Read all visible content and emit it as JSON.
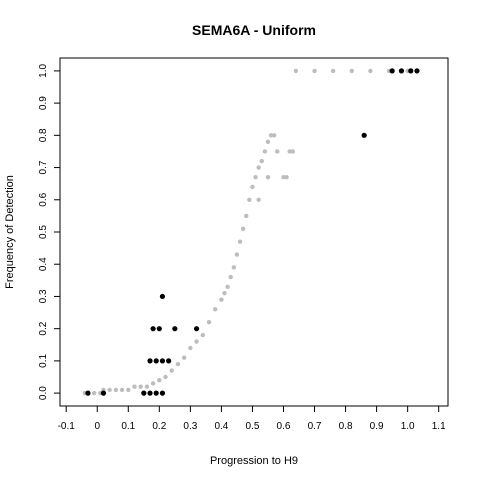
{
  "chart_data": {
    "type": "scatter",
    "title": "SEMA6A - Uniform",
    "xlabel": "Progression to H9",
    "ylabel": "Frequency of Detection",
    "xlim": [
      -0.12,
      1.13
    ],
    "ylim": [
      -0.04,
      1.04
    ],
    "grid": false,
    "x_ticks": [
      "-0.1",
      "0",
      "0.1",
      "0.2",
      "0.3",
      "0.4",
      "0.5",
      "0.6",
      "0.7",
      "0.8",
      "0.9",
      "1.0",
      "1.1"
    ],
    "x_tick_values": [
      -0.1,
      0,
      0.1,
      0.2,
      0.3,
      0.4,
      0.5,
      0.6,
      0.7,
      0.8,
      0.9,
      1.0,
      1.1
    ],
    "y_ticks": [
      "0.0",
      "0.1",
      "0.2",
      "0.3",
      "0.4",
      "0.5",
      "0.6",
      "0.7",
      "0.8",
      "0.9",
      "1.0"
    ],
    "y_tick_values": [
      0.0,
      0.1,
      0.2,
      0.3,
      0.4,
      0.5,
      0.6,
      0.7,
      0.8,
      0.9,
      1.0
    ],
    "series": [
      {
        "color": "#bdbdbd",
        "marker": "circle",
        "points": [
          [
            -0.04,
            0.0
          ],
          [
            -0.01,
            0.0
          ],
          [
            0.01,
            0.0
          ],
          [
            0.02,
            0.01
          ],
          [
            0.04,
            0.01
          ],
          [
            0.06,
            0.01
          ],
          [
            0.08,
            0.01
          ],
          [
            0.1,
            0.01
          ],
          [
            0.12,
            0.02
          ],
          [
            0.14,
            0.02
          ],
          [
            0.16,
            0.02
          ],
          [
            0.18,
            0.03
          ],
          [
            0.2,
            0.04
          ],
          [
            0.22,
            0.05
          ],
          [
            0.24,
            0.07
          ],
          [
            0.26,
            0.09
          ],
          [
            0.28,
            0.11
          ],
          [
            0.3,
            0.14
          ],
          [
            0.32,
            0.16
          ],
          [
            0.34,
            0.18
          ],
          [
            0.36,
            0.22
          ],
          [
            0.38,
            0.26
          ],
          [
            0.4,
            0.29
          ],
          [
            0.41,
            0.31
          ],
          [
            0.42,
            0.33
          ],
          [
            0.43,
            0.36
          ],
          [
            0.44,
            0.39
          ],
          [
            0.45,
            0.43
          ],
          [
            0.46,
            0.47
          ],
          [
            0.47,
            0.51
          ],
          [
            0.48,
            0.55
          ],
          [
            0.49,
            0.6
          ],
          [
            0.5,
            0.64
          ],
          [
            0.51,
            0.67
          ],
          [
            0.52,
            0.7
          ],
          [
            0.53,
            0.72
          ],
          [
            0.54,
            0.75
          ],
          [
            0.55,
            0.78
          ],
          [
            0.56,
            0.8
          ],
          [
            0.57,
            0.8
          ],
          [
            0.58,
            0.75
          ],
          [
            0.6,
            0.67
          ],
          [
            0.62,
            0.75
          ],
          [
            0.52,
            0.6
          ],
          [
            0.55,
            0.67
          ],
          [
            0.61,
            0.67
          ],
          [
            0.63,
            0.75
          ],
          [
            0.64,
            1.0
          ],
          [
            0.7,
            1.0
          ],
          [
            0.76,
            1.0
          ],
          [
            0.82,
            1.0
          ],
          [
            0.88,
            1.0
          ],
          [
            0.94,
            1.0
          ],
          [
            1.0,
            1.0
          ]
        ]
      },
      {
        "color": "#000000",
        "marker": "circle",
        "points": [
          [
            -0.03,
            0.0
          ],
          [
            0.02,
            0.0
          ],
          [
            0.15,
            0.0
          ],
          [
            0.17,
            0.0
          ],
          [
            0.19,
            0.0
          ],
          [
            0.21,
            0.0
          ],
          [
            0.17,
            0.1
          ],
          [
            0.19,
            0.1
          ],
          [
            0.21,
            0.1
          ],
          [
            0.23,
            0.1
          ],
          [
            0.18,
            0.2
          ],
          [
            0.2,
            0.2
          ],
          [
            0.25,
            0.2
          ],
          [
            0.32,
            0.2
          ],
          [
            0.21,
            0.3
          ],
          [
            0.86,
            0.8
          ],
          [
            0.95,
            1.0
          ],
          [
            0.98,
            1.0
          ],
          [
            1.01,
            1.0
          ],
          [
            1.03,
            1.0
          ]
        ]
      }
    ]
  }
}
